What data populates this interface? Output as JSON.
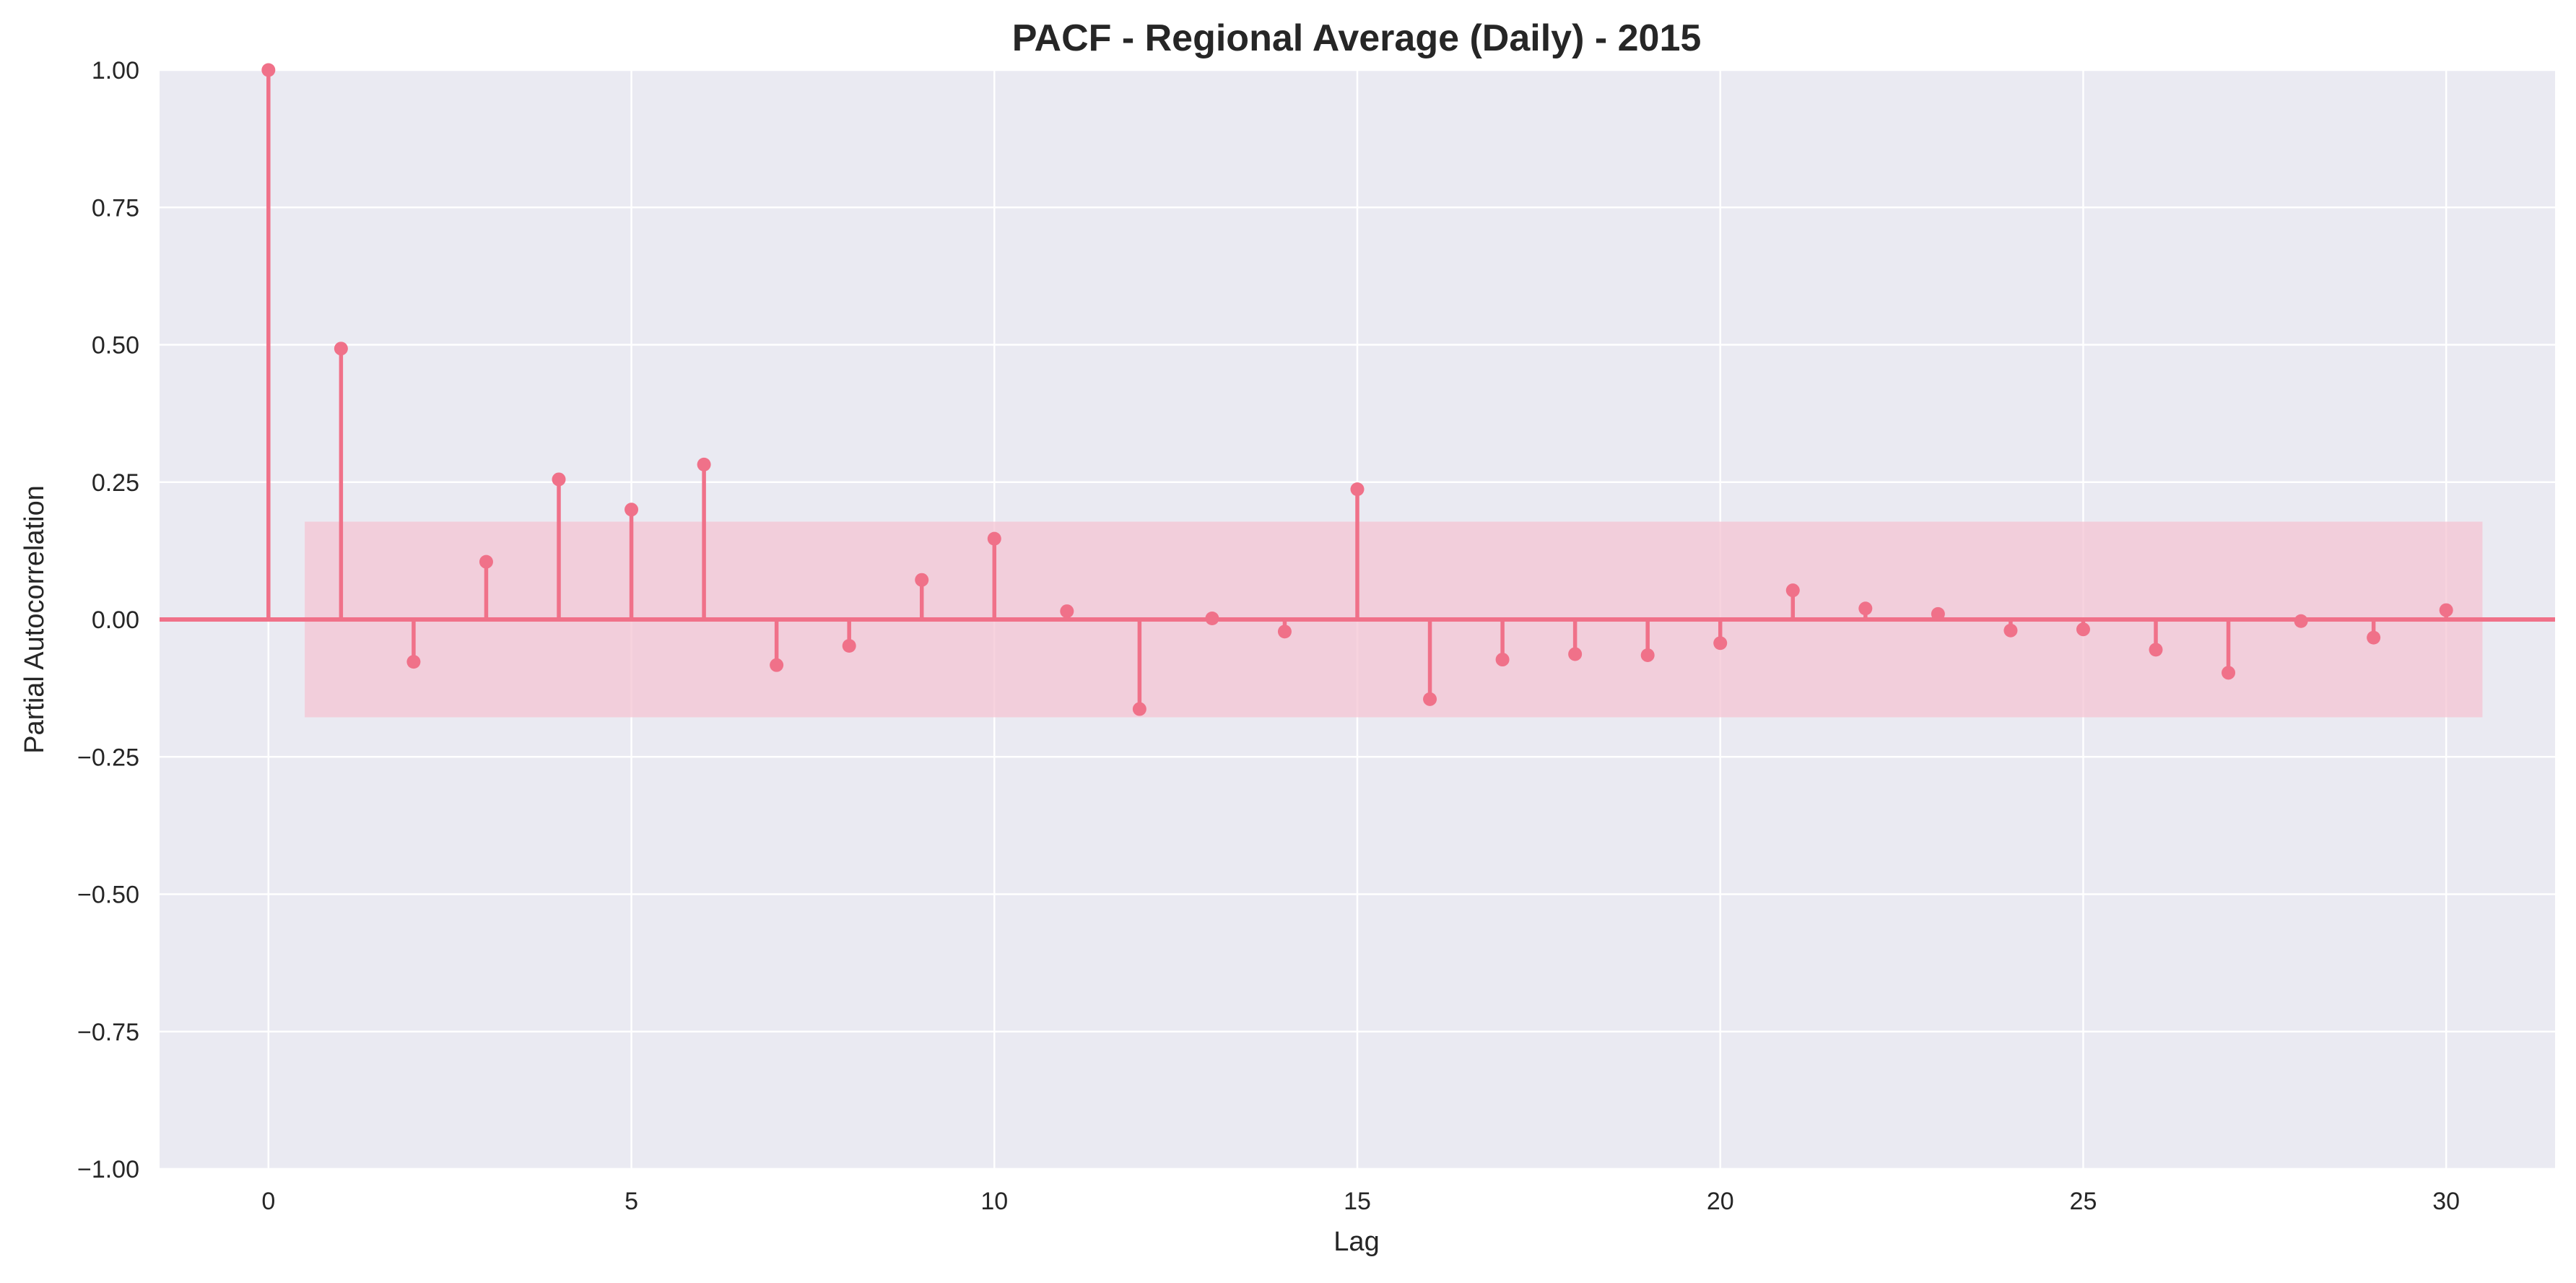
{
  "chart_data": {
    "type": "stem",
    "title": "PACF - Regional Average (Daily) - 2015",
    "xlabel": "Lag",
    "ylabel": "Partial Autocorrelation",
    "xlim": [
      -1.5,
      31.5
    ],
    "ylim": [
      -1.0,
      1.0
    ],
    "x_ticks": [
      0,
      5,
      10,
      15,
      20,
      25,
      30
    ],
    "x_tick_labels": [
      "0",
      "5",
      "10",
      "15",
      "20",
      "25",
      "30"
    ],
    "y_ticks": [
      -1.0,
      -0.75,
      -0.5,
      -0.25,
      0.0,
      0.25,
      0.5,
      0.75,
      1.0
    ],
    "y_tick_labels": [
      "−1.00",
      "−0.75",
      "−0.50",
      "−0.25",
      "0.00",
      "0.25",
      "0.50",
      "0.75",
      "1.00"
    ],
    "lags": [
      0,
      1,
      2,
      3,
      4,
      5,
      6,
      7,
      8,
      9,
      10,
      11,
      12,
      13,
      14,
      15,
      16,
      17,
      18,
      19,
      20,
      21,
      22,
      23,
      24,
      25,
      26,
      27,
      28,
      29,
      30
    ],
    "values": [
      1.0,
      0.493,
      -0.077,
      0.105,
      0.255,
      0.2,
      0.282,
      -0.083,
      -0.048,
      0.072,
      0.147,
      0.015,
      -0.163,
      0.002,
      -0.022,
      0.237,
      -0.145,
      -0.073,
      -0.063,
      -0.065,
      -0.043,
      0.053,
      0.02,
      0.01,
      -0.02,
      -0.018,
      -0.055,
      -0.097,
      -0.003,
      -0.033,
      0.017
    ],
    "confidence_band": {
      "x_range": [
        0.5,
        30.5
      ],
      "lower": -0.178,
      "upper": 0.178
    },
    "grid": true,
    "colors": {
      "series": "#f07189",
      "band": "#f4c4d3",
      "background": "#eaeaf2",
      "grid": "#ffffff"
    }
  }
}
